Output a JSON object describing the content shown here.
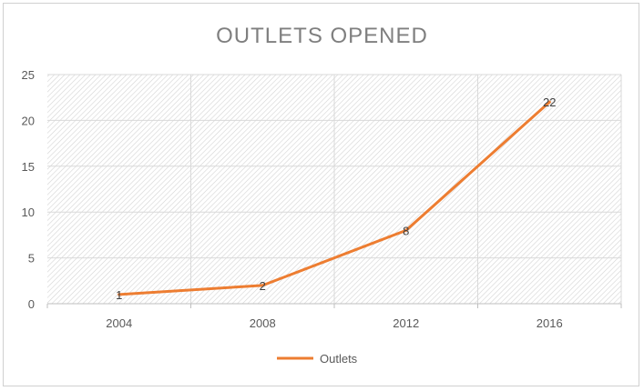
{
  "chart_data": {
    "type": "line",
    "title": "OUTLETS OPENED",
    "categories": [
      "2004",
      "2008",
      "2012",
      "2016"
    ],
    "series": [
      {
        "name": "Outlets",
        "values": [
          1,
          2,
          8,
          22
        ]
      }
    ],
    "data_labels": [
      "1",
      "2",
      "8",
      "22"
    ],
    "ylim": [
      0,
      25
    ],
    "yticks": [
      "0",
      "5",
      "10",
      "15",
      "20",
      "25"
    ],
    "grid": true,
    "legend": "bottom",
    "colors": {
      "series": "#ED7D31",
      "grid": "#d9d9d9",
      "axis": "#bfbfbf",
      "title": "#7f7f7f"
    }
  }
}
